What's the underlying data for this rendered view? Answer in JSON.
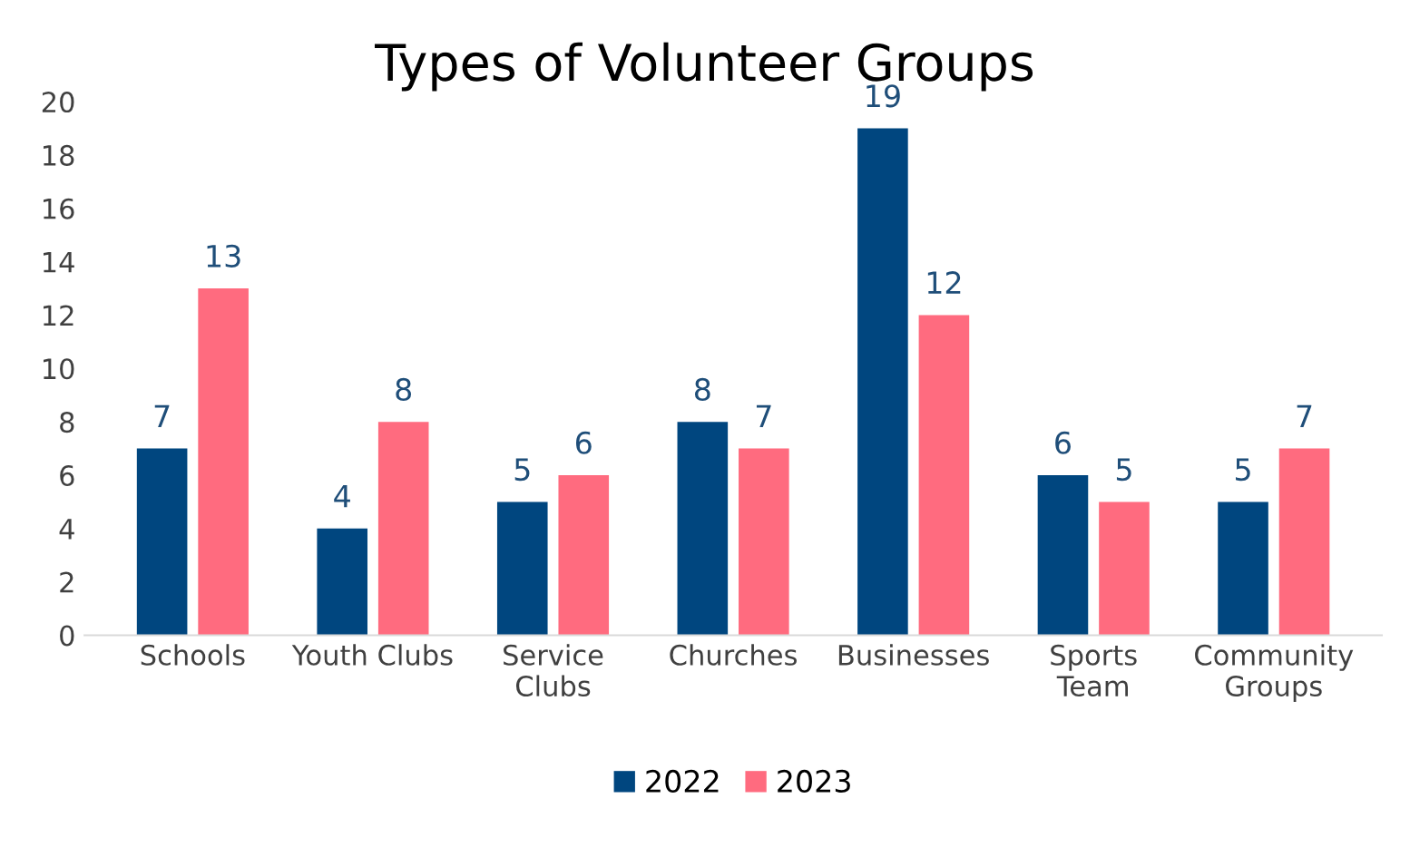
{
  "chart_data": {
    "type": "bar",
    "title": "Types of Volunteer Groups",
    "categories": [
      "Schools",
      "Youth Clubs",
      "Service\nClubs",
      "Churches",
      "Businesses",
      "Sports\nTeam",
      "Community\nGroups"
    ],
    "series": [
      {
        "name": "2022",
        "color": "#00467f",
        "values": [
          7,
          4,
          5,
          8,
          19,
          6,
          5
        ]
      },
      {
        "name": "2023",
        "color": "#ff6b7f",
        "values": [
          13,
          8,
          6,
          7,
          12,
          5,
          7
        ]
      }
    ],
    "ylim": [
      0,
      20
    ],
    "yticks": [
      0,
      2,
      4,
      6,
      8,
      10,
      12,
      14,
      16,
      18,
      20
    ],
    "grid": false,
    "legend": "bottom",
    "data_labels": true
  }
}
